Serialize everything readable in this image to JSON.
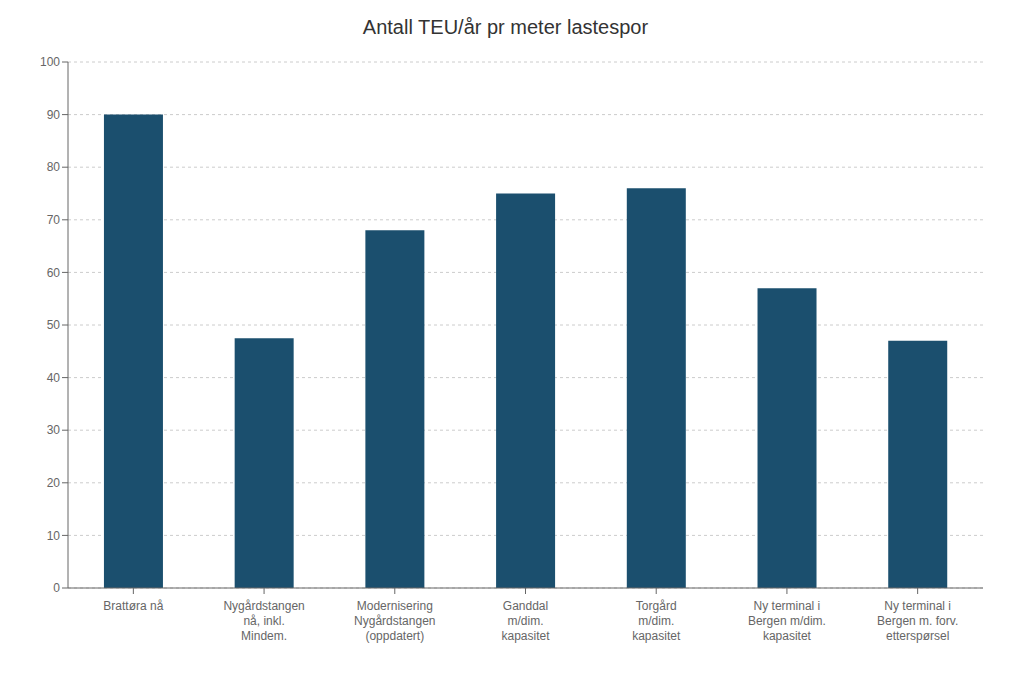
{
  "chart_data": {
    "type": "bar",
    "title": "Antall TEU/år pr meter lastespor",
    "categories": [
      "Brattøra nå",
      "Nygårdstangen\nnå, inkl.\nMindem.",
      "Modernisering\nNygårdstangen\n(oppdatert)",
      "Ganddal\nm/dim.\nkapasitet",
      "Torgård\nm/dim.\nkapasitet",
      "Ny terminal i\nBergen m/dim.\nkapasitet",
      "Ny terminal i\nBergen m. forv.\netterspørsel"
    ],
    "values": [
      90,
      47.5,
      68,
      75,
      76,
      57,
      47
    ],
    "color": "#1b4f6e",
    "ylim": [
      0,
      100
    ],
    "yticks": [
      0,
      10,
      20,
      30,
      40,
      50,
      60,
      70,
      80,
      90,
      100
    ],
    "grid": true
  }
}
